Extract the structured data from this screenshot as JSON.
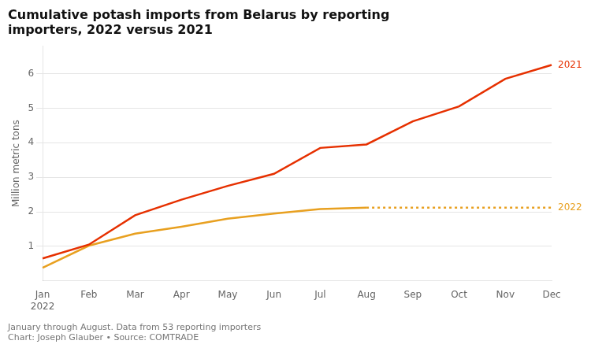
{
  "chart_data": {
    "type": "line",
    "title": "Cumulative potash imports from Belarus by reporting\nimporters, 2022 versus 2021",
    "y_label": "Million metric tons",
    "footer": [
      "January through August. Data from 53 reporting importers",
      "Chart: Joseph Glauber • Source: COMTRADE"
    ],
    "categories": [
      "Jan\n2022",
      "Feb",
      "Mar",
      "Apr",
      "May",
      "Jun",
      "Jul",
      "Aug",
      "Sep",
      "Oct",
      "Nov",
      "Dec"
    ],
    "series": [
      {
        "name": "2021",
        "color": "#e63000",
        "line_style": "solid",
        "values": [
          0.65,
          1.05,
          1.9,
          2.35,
          2.75,
          3.1,
          3.85,
          3.95,
          4.62,
          5.05,
          5.85,
          6.25
        ]
      },
      {
        "color": "#e8a020",
        "line_style": "solid",
        "values": [
          0.38,
          1.02,
          1.37,
          1.57,
          1.8,
          1.95,
          2.08,
          2.12,
          null,
          null,
          null,
          null
        ]
      },
      {
        "name": "2022",
        "color": "#e8a020",
        "line_style": "dotted",
        "values": [
          null,
          null,
          null,
          null,
          null,
          null,
          null,
          2.12,
          2.12,
          2.12,
          2.12,
          2.12
        ]
      }
    ],
    "ylim": [
      0,
      6.8
    ],
    "yticks": [
      1,
      2,
      3,
      4,
      5,
      6
    ],
    "grid": true
  }
}
